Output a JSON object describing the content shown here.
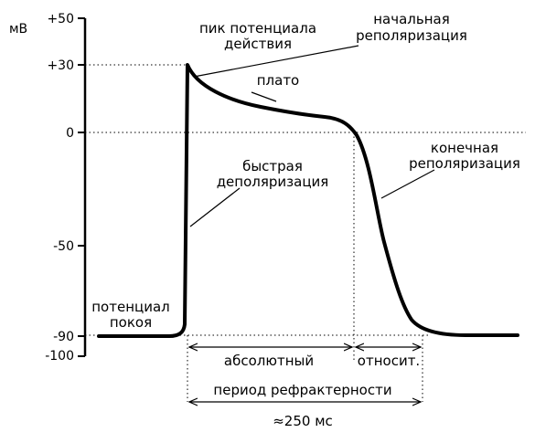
{
  "axis": {
    "unit": "мВ",
    "ticks": [
      "+50",
      "+30",
      "0",
      "-50",
      "-90",
      "-100"
    ]
  },
  "labels": {
    "peak": [
      "пик потенциала",
      "действия"
    ],
    "initial_repolarization": [
      "начальная",
      "реполяризация"
    ],
    "plateau": "плато",
    "fast_depolarization": [
      "быстрая",
      "деполяризация"
    ],
    "final_repolarization": [
      "конечная",
      "реполяризация"
    ],
    "resting_potential": [
      "потенциал",
      "покоя"
    ]
  },
  "refractory": {
    "absolute": "абсолютный",
    "relative": "относит.",
    "period": "период рефрактерности",
    "duration": "≈250 мс"
  }
}
